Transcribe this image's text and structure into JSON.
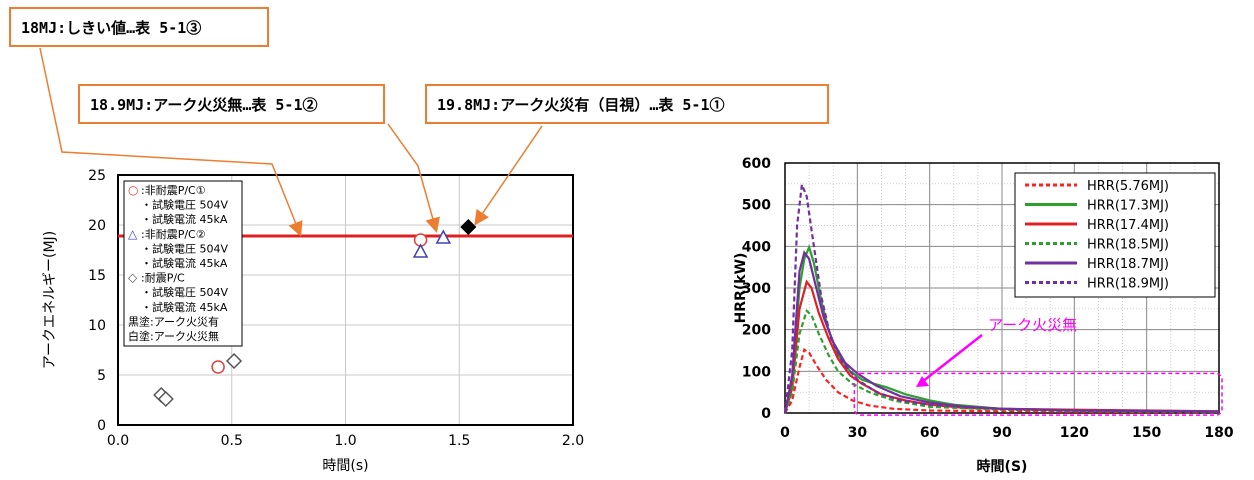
{
  "callouts": [
    {
      "text": "18MJ:しきい値…表 5-1③"
    },
    {
      "text": "18.9MJ:アーク火災無…表 5-1②"
    },
    {
      "text": "19.8MJ:アーク火災有（目視）…表 5-1①"
    }
  ],
  "chart_data": [
    {
      "type": "scatter",
      "title": "",
      "xlabel": "時間(s)",
      "ylabel": "アークエネルギー(MJ)",
      "xlim": [
        0,
        2.0
      ],
      "ylim": [
        0,
        25
      ],
      "xticks": [
        "0.0",
        "0.5",
        "1.0",
        "1.5",
        "2.0"
      ],
      "yticks": [
        "0",
        "5",
        "10",
        "15",
        "20",
        "25"
      ],
      "threshold_line": {
        "y": 18.9,
        "color": "#e02020"
      },
      "series": [
        {
          "name": "非耐震P/C①",
          "marker": "circle",
          "color": "#e04040",
          "points": [
            {
              "x": 0.44,
              "y": 5.8
            },
            {
              "x": 1.33,
              "y": 18.5
            }
          ]
        },
        {
          "name": "非耐震P/C②",
          "marker": "triangle",
          "color": "#4040b0",
          "points": [
            {
              "x": 1.33,
              "y": 17.3
            },
            {
              "x": 1.43,
              "y": 18.7
            }
          ]
        },
        {
          "name": "耐震P/C",
          "marker": "diamond",
          "color": "#555555",
          "points": [
            {
              "x": 0.19,
              "y": 3.0
            },
            {
              "x": 0.21,
              "y": 2.6
            },
            {
              "x": 0.51,
              "y": 6.4
            },
            {
              "x": 1.54,
              "y": 19.8,
              "filled": true
            }
          ]
        }
      ],
      "legend": {
        "position": "top-left",
        "lines": [
          {
            "sym": "○",
            "text": ":非耐震P/C①",
            "color": "#e04040"
          },
          {
            "sym": "",
            "text": "・試験電圧 504V"
          },
          {
            "sym": "",
            "text": "・試験電流 45kA"
          },
          {
            "sym": "△",
            "text": ":非耐震P/C②",
            "color": "#4040b0"
          },
          {
            "sym": "",
            "text": "・試験電圧 504V"
          },
          {
            "sym": "",
            "text": "・試験電流 45kA"
          },
          {
            "sym": "◇",
            "text": ":耐震P/C",
            "color": "#555555"
          },
          {
            "sym": "",
            "text": "・試験電圧 504V"
          },
          {
            "sym": "",
            "text": "・試験電流 45kA"
          },
          {
            "sym": "",
            "text": "黒塗:アーク火災有"
          },
          {
            "sym": "",
            "text": "白塗:アーク火災無"
          }
        ]
      }
    },
    {
      "type": "line",
      "title": "",
      "xlabel": "時間(S)",
      "ylabel": "HRR(kW)",
      "xlim": [
        0,
        180
      ],
      "ylim": [
        0,
        600
      ],
      "xticks": [
        "0",
        "30",
        "60",
        "90",
        "120",
        "150",
        "180"
      ],
      "yticks": [
        "0",
        "100",
        "200",
        "300",
        "400",
        "500",
        "600"
      ],
      "annotation": "アーク火災無",
      "annotation_color": "#ff00ff",
      "legend": {
        "position": "top-right"
      },
      "series": [
        {
          "name": "HRR(5.76MJ)",
          "color": "#ff2020",
          "dashed": true,
          "points": [
            [
              0,
              0
            ],
            [
              3,
              30
            ],
            [
              6,
              110
            ],
            [
              8,
              152
            ],
            [
              10,
              145
            ],
            [
              13,
              115
            ],
            [
              17,
              80
            ],
            [
              22,
              50
            ],
            [
              28,
              30
            ],
            [
              35,
              18
            ],
            [
              45,
              10
            ],
            [
              60,
              6
            ],
            [
              90,
              4
            ],
            [
              120,
              3
            ],
            [
              180,
              2
            ]
          ]
        },
        {
          "name": "HRR(17.3MJ)",
          "color": "#2ca02c",
          "dashed": false,
          "points": [
            [
              0,
              0
            ],
            [
              3,
              80
            ],
            [
              6,
              300
            ],
            [
              8,
              370
            ],
            [
              10,
              398
            ],
            [
              12,
              360
            ],
            [
              15,
              270
            ],
            [
              18,
              200
            ],
            [
              22,
              140
            ],
            [
              27,
              100
            ],
            [
              32,
              80
            ],
            [
              37,
              70
            ],
            [
              42,
              62
            ],
            [
              50,
              45
            ],
            [
              60,
              30
            ],
            [
              70,
              20
            ],
            [
              90,
              10
            ],
            [
              120,
              6
            ],
            [
              150,
              5
            ],
            [
              180,
              3
            ]
          ]
        },
        {
          "name": "HRR(17.4MJ)",
          "color": "#e02020",
          "dashed": false,
          "points": [
            [
              0,
              0
            ],
            [
              3,
              60
            ],
            [
              6,
              250
            ],
            [
              9,
              315
            ],
            [
              11,
              300
            ],
            [
              14,
              240
            ],
            [
              18,
              180
            ],
            [
              22,
              130
            ],
            [
              27,
              90
            ],
            [
              32,
              70
            ],
            [
              40,
              45
            ],
            [
              50,
              30
            ],
            [
              60,
              20
            ],
            [
              75,
              12
            ],
            [
              90,
              10
            ],
            [
              120,
              8
            ],
            [
              150,
              6
            ],
            [
              180,
              4
            ]
          ]
        },
        {
          "name": "HRR(18.5MJ)",
          "color": "#2ca02c",
          "dashed": true,
          "points": [
            [
              0,
              0
            ],
            [
              3,
              50
            ],
            [
              6,
              190
            ],
            [
              9,
              245
            ],
            [
              11,
              235
            ],
            [
              14,
              190
            ],
            [
              18,
              140
            ],
            [
              22,
              100
            ],
            [
              28,
              70
            ],
            [
              35,
              50
            ],
            [
              45,
              30
            ],
            [
              60,
              15
            ],
            [
              90,
              8
            ],
            [
              120,
              5
            ],
            [
              180,
              3
            ]
          ]
        },
        {
          "name": "HRR(18.7MJ)",
          "color": "#7030a0",
          "dashed": false,
          "points": [
            [
              0,
              0
            ],
            [
              3,
              90
            ],
            [
              6,
              340
            ],
            [
              8,
              385
            ],
            [
              10,
              370
            ],
            [
              13,
              300
            ],
            [
              16,
              230
            ],
            [
              20,
              170
            ],
            [
              25,
              120
            ],
            [
              30,
              95
            ],
            [
              38,
              65
            ],
            [
              48,
              40
            ],
            [
              60,
              25
            ],
            [
              75,
              15
            ],
            [
              90,
              10
            ],
            [
              120,
              6
            ],
            [
              180,
              4
            ]
          ]
        },
        {
          "name": "HRR(18.9MJ)",
          "color": "#7030a0",
          "dashed": true,
          "points": [
            [
              0,
              0
            ],
            [
              3,
              150
            ],
            [
              5,
              450
            ],
            [
              7,
              548
            ],
            [
              9,
              520
            ],
            [
              12,
              400
            ],
            [
              15,
              280
            ],
            [
              19,
              180
            ],
            [
              24,
              120
            ],
            [
              30,
              80
            ],
            [
              38,
              50
            ],
            [
              48,
              30
            ],
            [
              60,
              20
            ],
            [
              90,
              10
            ],
            [
              120,
              6
            ],
            [
              180,
              3
            ]
          ]
        }
      ]
    }
  ]
}
